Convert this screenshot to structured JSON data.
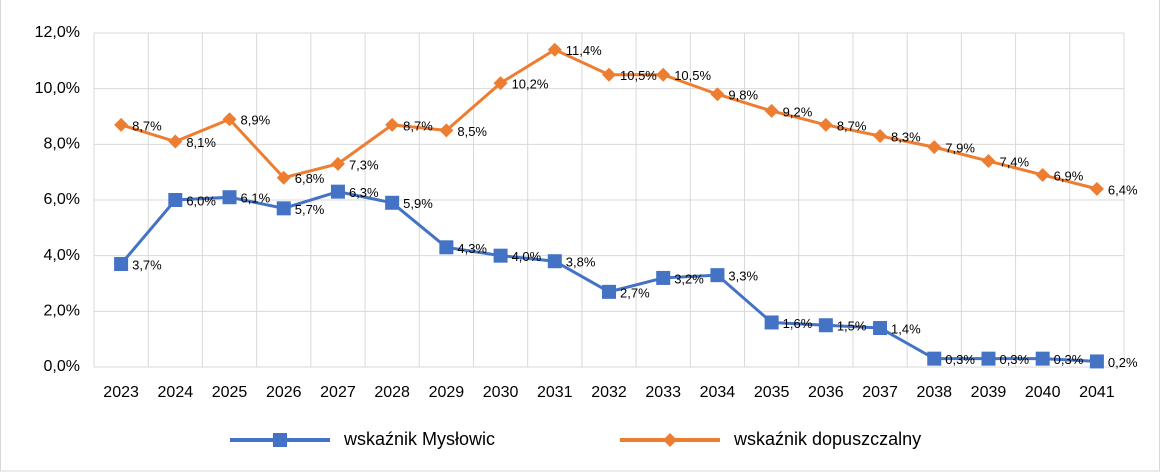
{
  "chart_data": {
    "type": "line",
    "categories": [
      "2023",
      "2024",
      "2025",
      "2026",
      "2027",
      "2028",
      "2029",
      "2030",
      "2031",
      "2032",
      "2033",
      "2034",
      "2035",
      "2036",
      "2037",
      "2038",
      "2039",
      "2040",
      "2041"
    ],
    "series": [
      {
        "name": "wskaźnik Mysłowic",
        "color": "#4472c4",
        "marker": "square",
        "values": [
          3.7,
          6.0,
          6.1,
          5.7,
          6.3,
          5.9,
          4.3,
          4.0,
          3.8,
          2.7,
          3.2,
          3.3,
          1.6,
          1.5,
          1.4,
          0.3,
          0.3,
          0.3,
          0.2
        ],
        "value_labels": [
          "3,7%",
          "6,0%",
          "6,1%",
          "5,7%",
          "6,3%",
          "5,9%",
          "4,3%",
          "4,0%",
          "3,8%",
          "2,7%",
          "3,2%",
          "3,3%",
          "1,6%",
          "1,5%",
          "1,4%",
          "0,3%",
          "0,3%",
          "0,3%",
          "0,2%"
        ]
      },
      {
        "name": "wskaźnik dopuszczalny",
        "color": "#ed7d31",
        "marker": "diamond",
        "values": [
          8.7,
          8.1,
          8.9,
          6.8,
          7.3,
          8.7,
          8.5,
          10.2,
          11.4,
          10.5,
          10.5,
          9.8,
          9.2,
          8.7,
          8.3,
          7.9,
          7.4,
          6.9,
          6.4
        ],
        "value_labels": [
          "8,7%",
          "8,1%",
          "8,9%",
          "6,8%",
          "7,3%",
          "8,7%",
          "8,5%",
          "10,2%",
          "11,4%",
          "10,5%",
          "10,5%",
          "9,8%",
          "9,2%",
          "8,7%",
          "8,3%",
          "7,9%",
          "7,4%",
          "6,9%",
          "6,4%"
        ]
      }
    ],
    "ylim": [
      0,
      12
    ],
    "yticks": [
      {
        "value": 0,
        "label": "0,0%"
      },
      {
        "value": 2,
        "label": "2,0%"
      },
      {
        "value": 4,
        "label": "4,0%"
      },
      {
        "value": 6,
        "label": "6,0%"
      },
      {
        "value": 8,
        "label": "8,0%"
      },
      {
        "value": 10,
        "label": "10,0%"
      },
      {
        "value": 12,
        "label": "12,0%"
      }
    ],
    "grid": true,
    "legend": "bottom"
  }
}
